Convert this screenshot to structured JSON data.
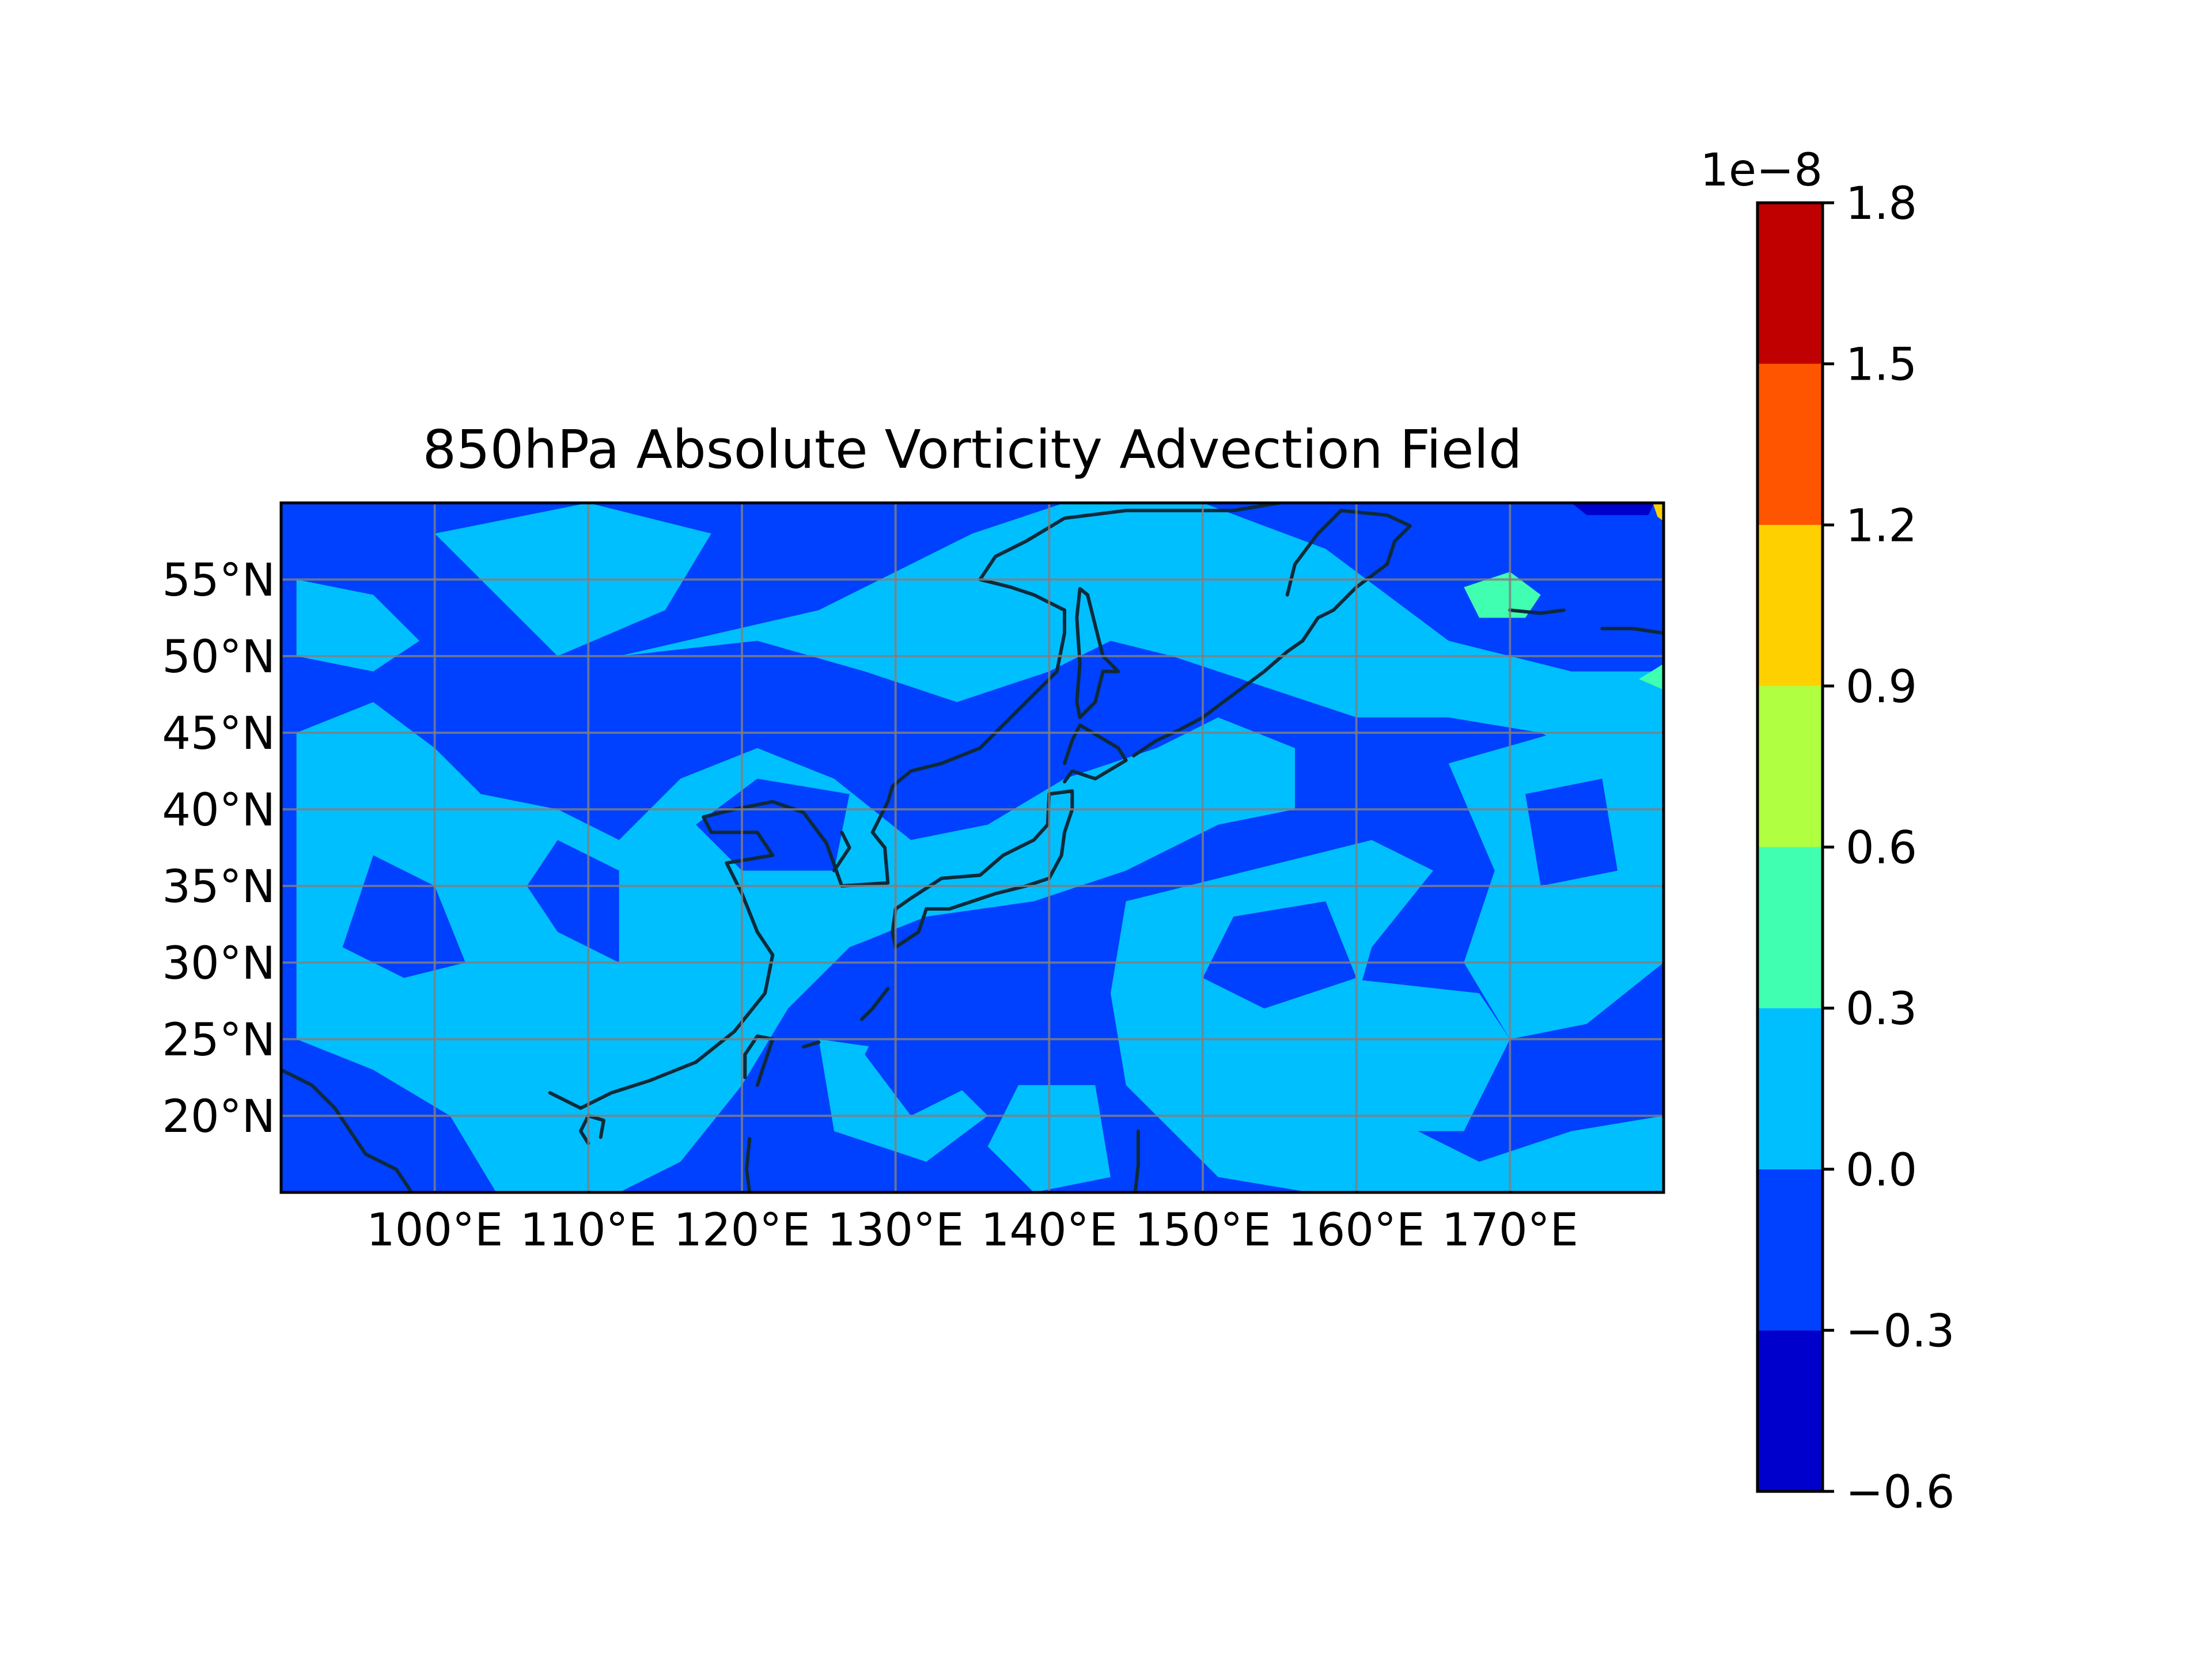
{
  "chart_data": {
    "type": "filled-contour-map",
    "title": "850hPa Absolute Vorticity Advection Field",
    "xlabel": "",
    "ylabel": "",
    "lon_range": [
      90,
      180
    ],
    "lat_range": [
      15,
      60
    ],
    "x_ticks": [
      {
        "value": 100,
        "label": "100°E"
      },
      {
        "value": 110,
        "label": "110°E"
      },
      {
        "value": 120,
        "label": "120°E"
      },
      {
        "value": 130,
        "label": "130°E"
      },
      {
        "value": 140,
        "label": "140°E"
      },
      {
        "value": 150,
        "label": "150°E"
      },
      {
        "value": 160,
        "label": "160°E"
      },
      {
        "value": 170,
        "label": "170°E"
      }
    ],
    "y_ticks": [
      {
        "value": 20,
        "label": "20°N"
      },
      {
        "value": 25,
        "label": "25°N"
      },
      {
        "value": 30,
        "label": "30°N"
      },
      {
        "value": 35,
        "label": "35°N"
      },
      {
        "value": 40,
        "label": "40°N"
      },
      {
        "value": 45,
        "label": "45°N"
      },
      {
        "value": 50,
        "label": "50°N"
      },
      {
        "value": 55,
        "label": "55°N"
      }
    ],
    "grid": true,
    "colorbar": {
      "placement": "right",
      "offset_label": "1e−8",
      "levels": [
        -0.6,
        -0.3,
        0.0,
        0.3,
        0.6,
        0.9,
        1.2,
        1.5,
        1.8
      ],
      "tick_labels": [
        "−0.6",
        "−0.3",
        "0.0",
        "0.3",
        "0.6",
        "0.9",
        "1.2",
        "1.5",
        "1.8"
      ],
      "colors": [
        "#0000cc",
        "#0040ff",
        "#00bfff",
        "#40ffb0",
        "#b0ff40",
        "#ffd000",
        "#ff5500",
        "#c00000"
      ]
    },
    "field_regions": [
      {
        "level": 2,
        "points": [
          [
            91,
            55
          ],
          [
            96,
            54
          ],
          [
            99,
            51
          ],
          [
            96,
            49
          ],
          [
            91,
            50
          ]
        ]
      },
      {
        "level": 2,
        "points": [
          [
            100,
            58
          ],
          [
            110,
            60
          ],
          [
            118,
            58
          ],
          [
            115,
            53
          ],
          [
            108,
            50
          ],
          [
            104,
            54
          ]
        ]
      },
      {
        "level": 2,
        "points": [
          [
            112,
            50
          ],
          [
            125,
            53
          ],
          [
            135,
            58
          ],
          [
            141,
            60
          ],
          [
            150,
            60
          ],
          [
            158,
            57
          ],
          [
            166,
            51
          ],
          [
            174,
            49
          ],
          [
            180,
            49
          ],
          [
            180,
            41
          ],
          [
            172,
            45
          ],
          [
            166,
            46
          ],
          [
            160,
            46
          ],
          [
            154,
            48
          ],
          [
            148,
            50
          ],
          [
            144,
            51
          ],
          [
            140,
            49
          ],
          [
            134,
            47
          ],
          [
            128,
            49
          ],
          [
            121,
            51
          ]
        ]
      },
      {
        "level": 2,
        "points": [
          [
            91,
            45
          ],
          [
            96,
            47
          ],
          [
            100,
            44
          ],
          [
            103,
            41
          ],
          [
            108,
            40
          ],
          [
            112,
            38
          ],
          [
            116,
            42
          ],
          [
            121,
            44
          ],
          [
            126,
            42
          ],
          [
            131,
            38
          ],
          [
            136,
            39
          ],
          [
            141,
            42
          ],
          [
            147,
            44
          ],
          [
            151,
            46
          ],
          [
            156,
            44
          ],
          [
            156,
            40
          ],
          [
            151,
            39
          ],
          [
            145,
            36
          ],
          [
            139,
            34
          ],
          [
            132,
            33
          ],
          [
            127,
            31
          ],
          [
            123,
            27
          ],
          [
            120,
            22
          ],
          [
            116,
            17
          ],
          [
            112,
            15
          ],
          [
            104,
            15
          ],
          [
            101,
            20
          ],
          [
            96,
            23
          ],
          [
            91,
            25
          ]
        ]
      },
      {
        "level": 2,
        "points": [
          [
            145,
            34
          ],
          [
            153,
            36
          ],
          [
            161,
            38
          ],
          [
            165,
            36
          ],
          [
            161,
            31
          ],
          [
            159,
            24
          ],
          [
            162,
            20
          ],
          [
            168,
            17
          ],
          [
            174,
            19
          ],
          [
            180,
            20
          ],
          [
            180,
            15
          ],
          [
            167,
            15
          ],
          [
            157,
            15
          ],
          [
            151,
            16
          ],
          [
            145,
            22
          ],
          [
            144,
            28
          ]
        ]
      },
      {
        "level": 2,
        "points": [
          [
            166,
            43
          ],
          [
            173,
            45
          ],
          [
            180,
            42
          ],
          [
            180,
            30
          ],
          [
            175,
            26
          ],
          [
            170,
            25
          ],
          [
            167,
            30
          ],
          [
            169,
            36
          ]
        ]
      },
      {
        "level": 2,
        "points": [
          [
            125,
            25
          ],
          [
            132,
            24
          ],
          [
            136,
            20
          ],
          [
            132,
            17
          ],
          [
            126,
            19
          ]
        ]
      },
      {
        "level": 2,
        "points": [
          [
            138,
            22
          ],
          [
            143,
            22
          ],
          [
            144,
            16
          ],
          [
            139,
            15
          ],
          [
            136,
            18
          ]
        ]
      },
      {
        "level": 2,
        "points": [
          [
            159,
            29
          ],
          [
            168,
            28
          ],
          [
            170,
            25
          ],
          [
            167,
            19
          ],
          [
            160,
            19
          ],
          [
            157,
            24
          ]
        ]
      },
      {
        "level": 1,
        "points": [
          [
            108,
            32
          ],
          [
            112,
            30
          ],
          [
            112,
            36
          ],
          [
            108,
            38
          ],
          [
            106,
            35
          ]
        ]
      },
      {
        "level": 1,
        "points": [
          [
            96,
            37
          ],
          [
            100,
            35
          ],
          [
            102,
            30
          ],
          [
            98,
            29
          ],
          [
            94,
            31
          ]
        ]
      },
      {
        "level": 1,
        "points": [
          [
            130,
            28
          ],
          [
            134,
            26
          ],
          [
            135,
            22
          ],
          [
            131,
            20
          ],
          [
            128,
            24
          ]
        ]
      },
      {
        "level": 1,
        "points": [
          [
            120,
            36
          ],
          [
            126,
            36
          ],
          [
            127,
            41
          ],
          [
            121,
            42
          ],
          [
            117,
            39
          ]
        ]
      },
      {
        "level": 1,
        "points": [
          [
            152,
            33
          ],
          [
            158,
            34
          ],
          [
            160,
            29
          ],
          [
            154,
            27
          ],
          [
            150,
            29
          ]
        ]
      },
      {
        "level": 1,
        "points": [
          [
            171,
            41
          ],
          [
            176,
            42
          ],
          [
            177,
            36
          ],
          [
            172,
            35
          ]
        ]
      },
      {
        "level": 3,
        "points": [
          [
            167,
            54.5
          ],
          [
            170,
            55.5
          ],
          [
            172,
            54
          ],
          [
            171,
            52.5
          ],
          [
            168,
            52.5
          ]
        ]
      },
      {
        "level": 0,
        "points": [
          [
            174,
            60
          ],
          [
            179.4,
            60
          ],
          [
            179,
            59.2
          ],
          [
            175,
            59.2
          ]
        ]
      },
      {
        "level": 5,
        "points": [
          [
            179.3,
            60
          ],
          [
            180,
            60
          ],
          [
            180,
            58.8
          ],
          [
            179.6,
            59.1
          ]
        ]
      },
      {
        "level": 3,
        "points": [
          [
            178.4,
            48.5
          ],
          [
            180,
            49.5
          ],
          [
            180,
            47.8
          ]
        ]
      }
    ],
    "coastlines": [
      [
        [
          90,
          23
        ],
        [
          92,
          22
        ],
        [
          93.5,
          20.5
        ],
        [
          95.5,
          17.5
        ],
        [
          97.5,
          16.5
        ],
        [
          98.5,
          15
        ]
      ],
      [
        [
          107.5,
          21.5
        ],
        [
          109.5,
          20.5
        ],
        [
          111.5,
          21.5
        ],
        [
          114,
          22.3
        ],
        [
          117,
          23.5
        ],
        [
          119.5,
          25.5
        ],
        [
          121.5,
          28
        ],
        [
          122,
          30.5
        ],
        [
          121,
          32
        ],
        [
          120,
          34.5
        ],
        [
          119,
          36.5
        ],
        [
          122,
          37
        ],
        [
          121,
          38.5
        ],
        [
          118,
          38.5
        ],
        [
          117.5,
          39.5
        ],
        [
          119.5,
          40
        ],
        [
          122,
          40.5
        ],
        [
          124,
          39.8
        ],
        [
          125.5,
          37.8
        ],
        [
          126.5,
          35
        ],
        [
          129.5,
          35.2
        ],
        [
          129.3,
          37.5
        ],
        [
          128.5,
          38.5
        ],
        [
          129.5,
          40.5
        ],
        [
          129.8,
          41.5
        ],
        [
          131,
          42.5
        ],
        [
          133,
          43
        ],
        [
          135.5,
          44
        ],
        [
          137.5,
          46
        ],
        [
          139,
          47.5
        ],
        [
          140.5,
          49
        ],
        [
          141,
          51.5
        ],
        [
          141,
          53
        ],
        [
          139,
          54
        ],
        [
          137.5,
          54.5
        ],
        [
          135.5,
          55
        ],
        [
          136.5,
          56.5
        ],
        [
          138.5,
          57.5
        ],
        [
          141,
          59
        ],
        [
          145,
          59.5
        ],
        [
          148.5,
          59.5
        ],
        [
          152,
          59.5
        ],
        [
          155,
          60
        ]
      ],
      [
        [
          126,
          36
        ],
        [
          127,
          37.5
        ],
        [
          126.5,
          38.5
        ]
      ],
      [
        [
          130,
          31
        ],
        [
          131.5,
          32
        ],
        [
          132,
          33.5
        ],
        [
          133.5,
          33.5
        ],
        [
          135,
          34
        ],
        [
          136.5,
          34.5
        ],
        [
          138.5,
          35
        ],
        [
          140,
          35.5
        ],
        [
          140.8,
          37
        ],
        [
          141,
          38.5
        ],
        [
          141.5,
          40
        ],
        [
          141.5,
          41.2
        ],
        [
          140,
          41
        ],
        [
          139.9,
          39
        ],
        [
          139,
          38
        ],
        [
          137,
          37
        ],
        [
          135.5,
          35.7
        ],
        [
          133,
          35.5
        ],
        [
          131,
          34.2
        ],
        [
          130,
          33.5
        ],
        [
          129.8,
          32
        ],
        [
          130,
          31
        ]
      ],
      [
        [
          141,
          41.8
        ],
        [
          141.5,
          42.5
        ],
        [
          143,
          42
        ],
        [
          145,
          43.2
        ],
        [
          144.5,
          44
        ],
        [
          142,
          45.5
        ],
        [
          141.5,
          44.5
        ],
        [
          141,
          43
        ]
      ],
      [
        [
          142,
          46
        ],
        [
          143,
          47
        ],
        [
          143.5,
          49
        ],
        [
          144.5,
          49
        ],
        [
          143.5,
          50
        ],
        [
          143,
          52
        ],
        [
          142.5,
          54
        ],
        [
          142,
          54.4
        ],
        [
          141.8,
          52.5
        ],
        [
          142,
          49.5
        ],
        [
          141.8,
          47
        ],
        [
          142,
          46
        ]
      ],
      [
        [
          120.2,
          22.5
        ],
        [
          120.2,
          24
        ],
        [
          121,
          25.2
        ],
        [
          122,
          25
        ],
        [
          121.5,
          23.5
        ],
        [
          121,
          22
        ]
      ],
      [
        [
          110,
          18.2
        ],
        [
          109.5,
          19
        ],
        [
          110,
          20
        ],
        [
          111,
          19.7
        ],
        [
          110.8,
          18.6
        ]
      ],
      [
        [
          120.5,
          18.5
        ],
        [
          120.3,
          16.5
        ],
        [
          120.5,
          15
        ]
      ],
      [
        [
          156.5,
          51
        ],
        [
          157.5,
          52.5
        ],
        [
          158.5,
          53
        ],
        [
          160,
          54.5
        ],
        [
          162,
          56
        ],
        [
          162.5,
          57.5
        ],
        [
          163.5,
          58.5
        ],
        [
          162,
          59.2
        ],
        [
          159,
          59.5
        ],
        [
          157.5,
          58
        ],
        [
          156,
          56
        ],
        [
          155.5,
          54
        ]
      ],
      [
        [
          145.5,
          43.5
        ],
        [
          147,
          44.5
        ],
        [
          148.5,
          45.2
        ],
        [
          150,
          46
        ],
        [
          152,
          47.5
        ],
        [
          154,
          49
        ],
        [
          155.5,
          50.3
        ],
        [
          156.5,
          51
        ]
      ],
      [
        [
          170,
          53
        ],
        [
          172,
          52.8
        ],
        [
          173.5,
          53
        ]
      ],
      [
        [
          176,
          51.8
        ],
        [
          178,
          51.8
        ],
        [
          180,
          51.5
        ]
      ],
      [
        [
          129.5,
          28.3
        ],
        [
          128.5,
          27
        ],
        [
          127.8,
          26.3
        ]
      ],
      [
        [
          124,
          24.5
        ],
        [
          125,
          24.8
        ]
      ],
      [
        [
          145.8,
          19
        ],
        [
          145.8,
          16.8
        ],
        [
          145.6,
          15
        ]
      ]
    ]
  }
}
